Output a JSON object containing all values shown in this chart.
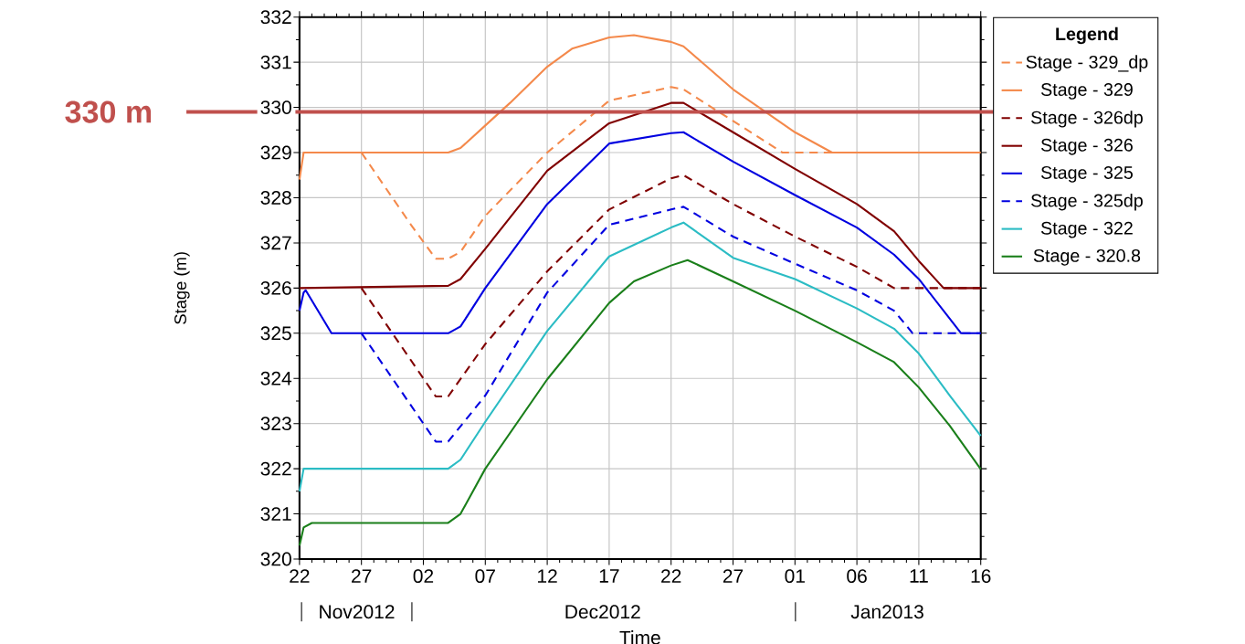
{
  "chart_data": {
    "type": "line",
    "xlabel": "Time",
    "ylabel": "Stage (m)",
    "legend_title": "Legend",
    "legend": "right",
    "grid": true,
    "xlim": [
      "2012-11-22",
      "2013-01-16"
    ],
    "ylim": [
      320,
      332
    ],
    "xticks": [
      {
        "value": "2012-11-22",
        "label": "22"
      },
      {
        "value": "2012-11-27",
        "label": "27"
      },
      {
        "value": "2012-12-02",
        "label": "02"
      },
      {
        "value": "2012-12-07",
        "label": "07"
      },
      {
        "value": "2012-12-12",
        "label": "12"
      },
      {
        "value": "2012-12-17",
        "label": "17"
      },
      {
        "value": "2012-12-22",
        "label": "22"
      },
      {
        "value": "2012-12-27",
        "label": "27"
      },
      {
        "value": "2013-01-01",
        "label": "01"
      },
      {
        "value": "2013-01-06",
        "label": "06"
      },
      {
        "value": "2013-01-11",
        "label": "11"
      },
      {
        "value": "2013-01-16",
        "label": "16"
      }
    ],
    "yticks": [
      320,
      321,
      322,
      323,
      324,
      325,
      326,
      327,
      328,
      329,
      330,
      331,
      332
    ],
    "annotations": [
      "Nov2012",
      "Dec2012",
      "Jan2013"
    ],
    "ref_lines": [
      {
        "axis": "y",
        "value": 329.9,
        "label": "330 m",
        "color": "#c0504d"
      }
    ],
    "series": [
      {
        "name": "Stage - 329_dp",
        "color": "#f4894b",
        "line_style": "dashed",
        "x": [
          "2012-11-27",
          "2012-12-01",
          "2012-12-03",
          "2012-12-04",
          "2012-12-05",
          "2012-12-07",
          "2012-12-12",
          "2012-12-17",
          "2012-12-22",
          "2012-12-23",
          "2012-12-27",
          "2012-12-31",
          "2013-01-16"
        ],
        "values": [
          329.0,
          327.4,
          326.65,
          326.65,
          326.8,
          327.6,
          329.0,
          330.15,
          330.45,
          330.4,
          329.7,
          329.0,
          329.0
        ]
      },
      {
        "name": "Stage - 329",
        "color": "#f4894b",
        "line_style": "solid",
        "x": [
          "2012-11-22",
          "2012-11-22T08:00",
          "2012-12-04",
          "2012-12-05",
          "2012-12-07",
          "2012-12-09",
          "2012-12-12",
          "2012-12-14",
          "2012-12-17",
          "2012-12-19",
          "2012-12-22",
          "2012-12-23",
          "2012-12-27",
          "2013-01-01",
          "2013-01-04",
          "2013-01-16"
        ],
        "values": [
          328.4,
          329.0,
          329.0,
          329.1,
          329.6,
          330.1,
          330.9,
          331.3,
          331.55,
          331.6,
          331.45,
          331.35,
          330.4,
          329.45,
          329.0,
          329.0
        ]
      },
      {
        "name": "Stage - 326dp",
        "color": "#800000",
        "line_style": "dashed",
        "x": [
          "2012-11-27",
          "2012-12-03",
          "2012-12-04",
          "2012-12-07",
          "2012-12-12",
          "2012-12-17",
          "2012-12-22",
          "2012-12-23",
          "2012-12-27",
          "2013-01-01",
          "2013-01-06",
          "2013-01-09",
          "2013-01-16"
        ],
        "values": [
          326.0,
          323.6,
          323.6,
          324.76,
          326.37,
          327.74,
          328.43,
          328.5,
          327.86,
          327.14,
          326.47,
          326.0,
          326.0
        ]
      },
      {
        "name": "Stage - 326",
        "color": "#800000",
        "line_style": "solid",
        "x": [
          "2012-11-22",
          "2012-12-04",
          "2012-12-05",
          "2012-12-07",
          "2012-12-12",
          "2012-12-17",
          "2012-12-22",
          "2012-12-23",
          "2012-12-27",
          "2013-01-01",
          "2013-01-06",
          "2013-01-09",
          "2013-01-11",
          "2013-01-13",
          "2013-01-16"
        ],
        "values": [
          326.0,
          326.05,
          326.2,
          326.87,
          328.6,
          329.65,
          330.1,
          330.1,
          329.45,
          328.64,
          327.86,
          327.26,
          326.6,
          326.0,
          326.0
        ]
      },
      {
        "name": "Stage - 325",
        "color": "#0000e0",
        "line_style": "solid",
        "x": [
          "2012-11-22",
          "2012-11-22T08:00",
          "2012-11-22T12:00",
          "2012-11-24T14:00",
          "2012-12-04",
          "2012-12-05",
          "2012-12-07",
          "2012-12-12",
          "2012-12-17",
          "2012-12-22",
          "2012-12-23",
          "2012-12-27",
          "2013-01-01",
          "2013-01-06",
          "2013-01-09",
          "2013-01-11",
          "2013-01-14T10:00",
          "2013-01-16"
        ],
        "values": [
          325.5,
          325.9,
          325.95,
          325.0,
          325.0,
          325.15,
          326.0,
          327.86,
          329.2,
          329.43,
          329.45,
          328.8,
          328.06,
          327.34,
          326.74,
          326.2,
          325.0,
          325.0
        ]
      },
      {
        "name": "Stage - 325dp",
        "color": "#0000e0",
        "line_style": "dashed",
        "x": [
          "2012-11-27",
          "2012-12-03",
          "2012-12-04",
          "2012-12-07",
          "2012-12-12",
          "2012-12-17",
          "2012-12-22",
          "2012-12-23",
          "2012-12-27",
          "2013-01-01",
          "2013-01-06",
          "2013-01-09",
          "2013-01-10T12:00",
          "2013-01-16"
        ],
        "values": [
          325.0,
          322.6,
          322.6,
          323.62,
          325.9,
          327.4,
          327.74,
          327.8,
          327.14,
          326.54,
          325.95,
          325.5,
          325.0,
          325.0
        ]
      },
      {
        "name": "Stage - 322",
        "color": "#2bbcc4",
        "line_style": "solid",
        "x": [
          "2012-11-22",
          "2012-11-22T08:00",
          "2012-12-04",
          "2012-12-05",
          "2012-12-07",
          "2012-12-12",
          "2012-12-17",
          "2012-12-22",
          "2012-12-23",
          "2012-12-27",
          "2013-01-01",
          "2013-01-06",
          "2013-01-09",
          "2013-01-11",
          "2013-01-13T12:00",
          "2013-01-16"
        ],
        "values": [
          321.5,
          322.0,
          322.0,
          322.2,
          323.04,
          325.05,
          326.7,
          327.34,
          327.45,
          326.67,
          326.2,
          325.55,
          325.1,
          324.55,
          323.62,
          322.73
        ]
      },
      {
        "name": "Stage - 320.8",
        "color": "#1a7f1a",
        "line_style": "solid",
        "x": [
          "2012-11-22",
          "2012-11-22T08:00",
          "2012-11-23",
          "2012-12-04",
          "2012-12-05",
          "2012-12-07",
          "2012-12-12",
          "2012-12-17",
          "2012-12-19",
          "2012-12-22",
          "2012-12-23T08:00",
          "2012-12-27",
          "2013-01-01",
          "2013-01-06",
          "2013-01-09",
          "2013-01-11",
          "2013-01-13T12:00",
          "2013-01-16"
        ],
        "values": [
          320.3,
          320.7,
          320.8,
          320.8,
          321.0,
          322.0,
          323.98,
          325.67,
          326.15,
          326.5,
          326.62,
          326.15,
          325.5,
          324.8,
          324.36,
          323.8,
          322.95,
          321.99
        ]
      }
    ]
  }
}
